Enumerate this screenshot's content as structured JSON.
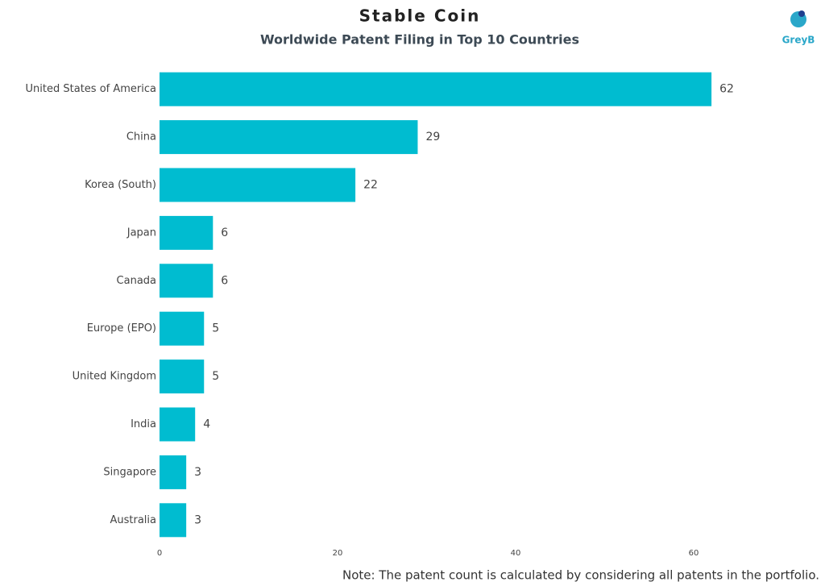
{
  "chart_data": {
    "type": "bar",
    "orientation": "horizontal",
    "title": "Stable Coin",
    "subtitle": "Worldwide Patent Filing in Top 10 Countries",
    "categories": [
      "United States of America",
      "China",
      "Korea (South)",
      "Japan",
      "Canada",
      "Europe (EPO)",
      "United Kingdom",
      "India",
      "Singapore",
      "Australia"
    ],
    "values": [
      62,
      29,
      22,
      6,
      6,
      5,
      5,
      4,
      3,
      3
    ],
    "color": "#00bcd0",
    "xlim": [
      0,
      70
    ],
    "xticks": [
      0,
      20,
      40,
      60
    ],
    "grid": false,
    "note": "Note: The patent count is calculated by considering all patents in the portfolio.",
    "logo": "GreyB"
  }
}
